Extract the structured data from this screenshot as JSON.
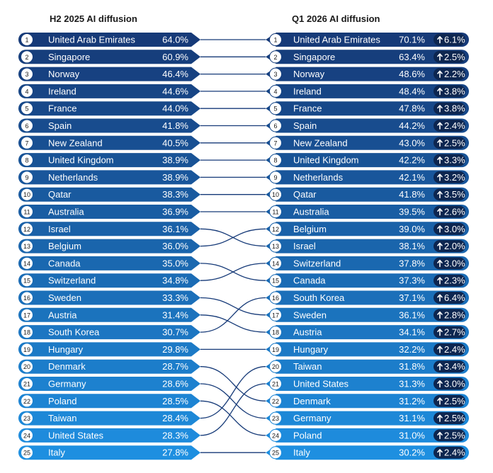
{
  "headings": {
    "left": "H2 2025 AI diffusion",
    "right": "Q1 2026 AI diffusion"
  },
  "chart_data": [
    {
      "type": "table",
      "title": "H2 2025 AI diffusion",
      "rows": [
        {
          "rank": 1,
          "country": "United Arab Emirates",
          "value": "64.0%"
        },
        {
          "rank": 2,
          "country": "Singapore",
          "value": "60.9%"
        },
        {
          "rank": 3,
          "country": "Norway",
          "value": "46.4%"
        },
        {
          "rank": 4,
          "country": "Ireland",
          "value": "44.6%"
        },
        {
          "rank": 5,
          "country": "France",
          "value": "44.0%"
        },
        {
          "rank": 6,
          "country": "Spain",
          "value": "41.8%"
        },
        {
          "rank": 7,
          "country": "New Zealand",
          "value": "40.5%"
        },
        {
          "rank": 8,
          "country": "United Kingdom",
          "value": "38.9%"
        },
        {
          "rank": 9,
          "country": "Netherlands",
          "value": "38.9%"
        },
        {
          "rank": 10,
          "country": "Qatar",
          "value": "38.3%"
        },
        {
          "rank": 11,
          "country": "Australia",
          "value": "36.9%"
        },
        {
          "rank": 12,
          "country": "Israel",
          "value": "36.1%"
        },
        {
          "rank": 13,
          "country": "Belgium",
          "value": "36.0%"
        },
        {
          "rank": 14,
          "country": "Canada",
          "value": "35.0%"
        },
        {
          "rank": 15,
          "country": "Switzerland",
          "value": "34.8%"
        },
        {
          "rank": 16,
          "country": "Sweden",
          "value": "33.3%"
        },
        {
          "rank": 17,
          "country": "Austria",
          "value": "31.4%"
        },
        {
          "rank": 18,
          "country": "South Korea",
          "value": "30.7%"
        },
        {
          "rank": 19,
          "country": "Hungary",
          "value": "29.8%"
        },
        {
          "rank": 20,
          "country": "Denmark",
          "value": "28.7%"
        },
        {
          "rank": 21,
          "country": "Germany",
          "value": "28.6%"
        },
        {
          "rank": 22,
          "country": "Poland",
          "value": "28.5%"
        },
        {
          "rank": 23,
          "country": "Taiwan",
          "value": "28.4%"
        },
        {
          "rank": 24,
          "country": "United States",
          "value": "28.3%"
        },
        {
          "rank": 25,
          "country": "Italy",
          "value": "27.8%"
        }
      ]
    },
    {
      "type": "table",
      "title": "Q1 2026 AI diffusion",
      "rows": [
        {
          "rank": 1,
          "country": "United Arab Emirates",
          "value": "70.1%",
          "change": "6.1%"
        },
        {
          "rank": 2,
          "country": "Singapore",
          "value": "63.4%",
          "change": "2.5%"
        },
        {
          "rank": 3,
          "country": "Norway",
          "value": "48.6%",
          "change": "2.2%"
        },
        {
          "rank": 4,
          "country": "Ireland",
          "value": "48.4%",
          "change": "3.8%"
        },
        {
          "rank": 5,
          "country": "France",
          "value": "47.8%",
          "change": "3.8%"
        },
        {
          "rank": 6,
          "country": "Spain",
          "value": "44.2%",
          "change": "2.4%"
        },
        {
          "rank": 7,
          "country": "New Zealand",
          "value": "43.0%",
          "change": "2.5%"
        },
        {
          "rank": 8,
          "country": "United Kingdom",
          "value": "42.2%",
          "change": "3.3%"
        },
        {
          "rank": 9,
          "country": "Netherlands",
          "value": "42.1%",
          "change": "3.2%"
        },
        {
          "rank": 10,
          "country": "Qatar",
          "value": "41.8%",
          "change": "3.5%"
        },
        {
          "rank": 11,
          "country": "Australia",
          "value": "39.5%",
          "change": "2.6%"
        },
        {
          "rank": 12,
          "country": "Belgium",
          "value": "39.0%",
          "change": "3.0%"
        },
        {
          "rank": 13,
          "country": "Israel",
          "value": "38.1%",
          "change": "2.0%"
        },
        {
          "rank": 14,
          "country": "Switzerland",
          "value": "37.8%",
          "change": "3.0%"
        },
        {
          "rank": 15,
          "country": "Canada",
          "value": "37.3%",
          "change": "2.3%"
        },
        {
          "rank": 16,
          "country": "South Korea",
          "value": "37.1%",
          "change": "6.4%"
        },
        {
          "rank": 17,
          "country": "Sweden",
          "value": "36.1%",
          "change": "2.8%"
        },
        {
          "rank": 18,
          "country": "Austria",
          "value": "34.1%",
          "change": "2.7%"
        },
        {
          "rank": 19,
          "country": "Hungary",
          "value": "32.2%",
          "change": "2.4%"
        },
        {
          "rank": 20,
          "country": "Taiwan",
          "value": "31.8%",
          "change": "3.4%"
        },
        {
          "rank": 21,
          "country": "United States",
          "value": "31.3%",
          "change": "3.0%"
        },
        {
          "rank": 22,
          "country": "Denmark",
          "value": "31.2%",
          "change": "2.5%"
        },
        {
          "rank": 23,
          "country": "Germany",
          "value": "31.1%",
          "change": "2.5%"
        },
        {
          "rank": 24,
          "country": "Poland",
          "value": "31.0%",
          "change": "2.5%"
        },
        {
          "rank": 25,
          "country": "Italy",
          "value": "30.2%",
          "change": "2.4%"
        }
      ]
    }
  ],
  "colors": {
    "gradient_top": "#163a78",
    "gradient_bottom": "#1e8fe0",
    "connector": "#163a78",
    "badge_fill": "#0d2650",
    "rank_circle_fill": "#ffffff"
  },
  "icons": {
    "change_arrow": "arrow-up-icon"
  }
}
